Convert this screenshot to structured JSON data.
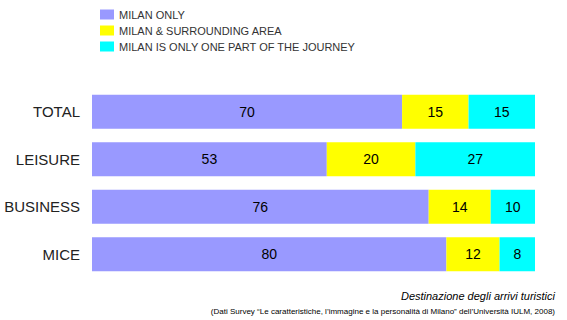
{
  "chart_data": {
    "type": "bar",
    "orientation": "horizontal",
    "stacked": true,
    "data_labels": true,
    "tick_labels": "y",
    "legend": "top-left",
    "categories": [
      "TOTAL",
      "LEISURE",
      "BUSINESS",
      "MICE"
    ],
    "series": [
      {
        "name": "MILAN ONLY",
        "color": "#9999ff",
        "values": [
          70,
          53,
          76,
          80
        ]
      },
      {
        "name": "MILAN & SURROUNDING AREA",
        "color": "#ffff00",
        "values": [
          15,
          20,
          14,
          12
        ]
      },
      {
        "name": "MILAN IS ONLY ONE PART OF THE JOURNEY",
        "color": "#00ffff",
        "values": [
          15,
          27,
          10,
          8
        ]
      }
    ],
    "xlim": [
      0,
      100
    ],
    "annotations": [
      "Destinazione degli arrivi turistici",
      "(Dati Survey “Le caratteristiche, l’immagine e la personalità di Milano” dell’Università IULM, 2008)"
    ]
  }
}
